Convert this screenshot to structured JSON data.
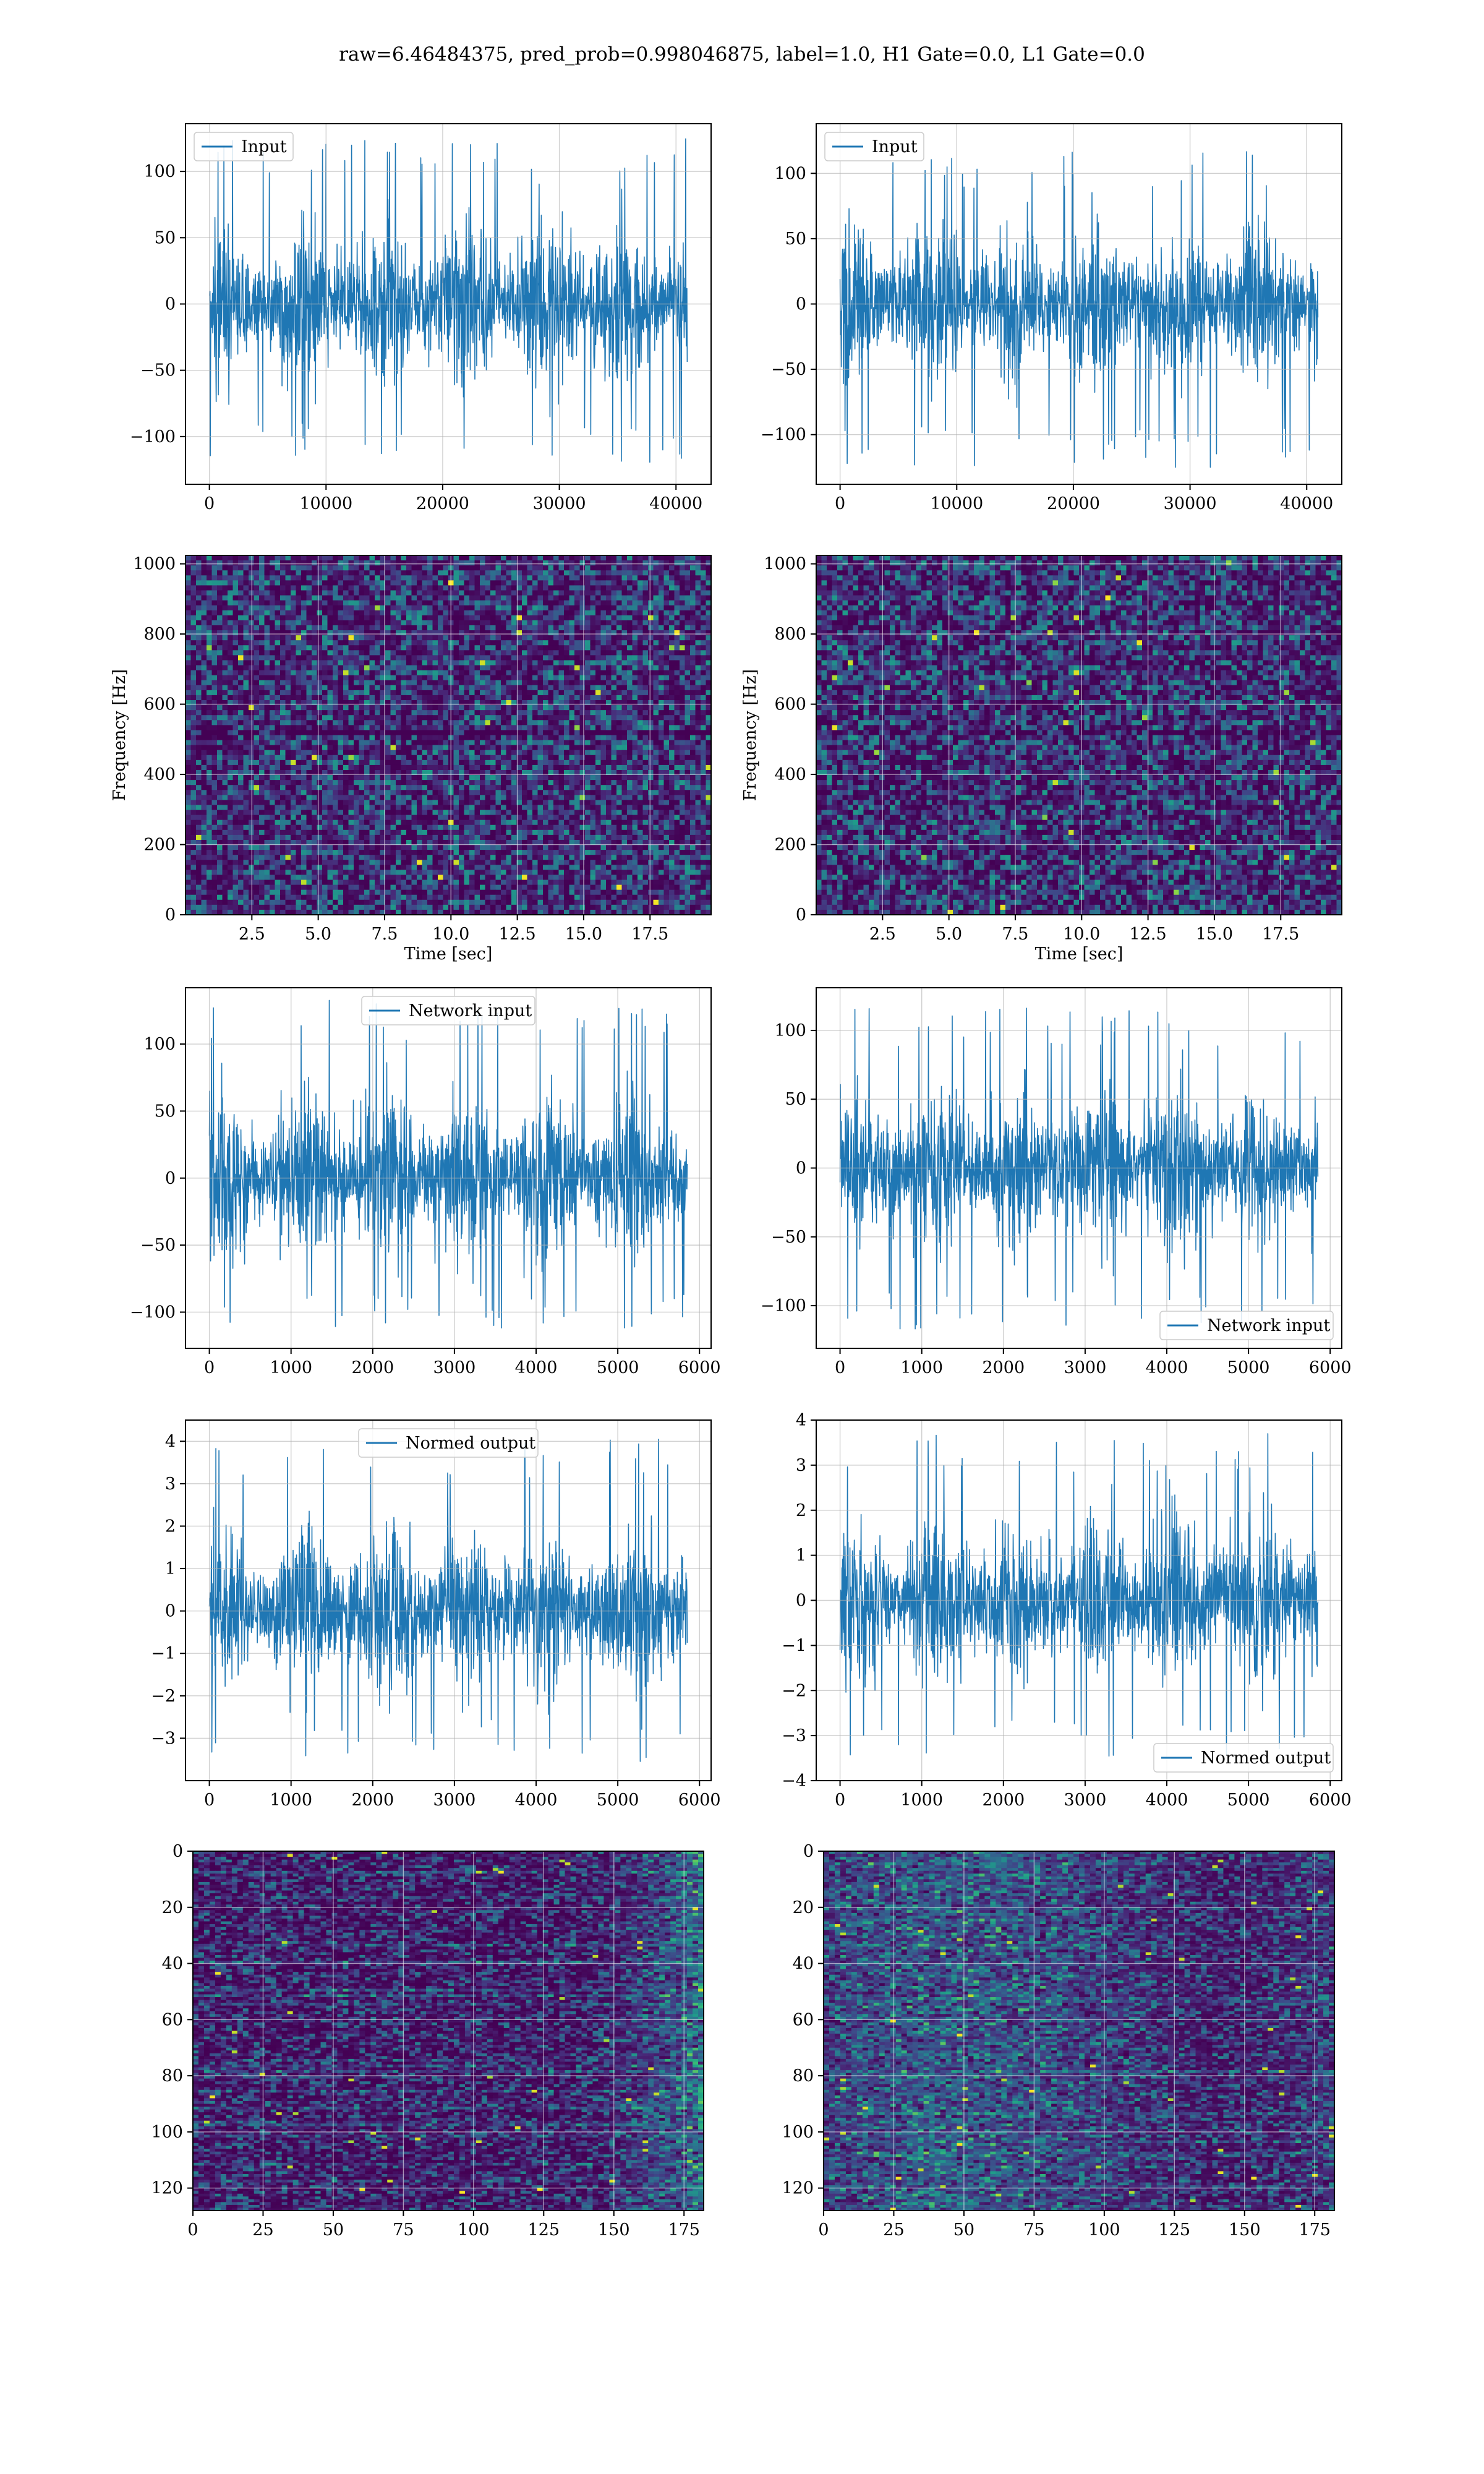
{
  "figure": {
    "suptitle": "raw=6.46484375, pred_prob=0.998046875, label=1.0, H1 Gate=0.0, L1 Gate=0.0",
    "colors": {
      "line": "#1f77b4",
      "grid": "#b0b0b0",
      "viridis_dark": "#440154"
    }
  },
  "chart_data": [
    {
      "id": "input-h1",
      "type": "line",
      "title": "",
      "series": [
        {
          "name": "Input",
          "length": 40960,
          "amplitude_range": [
            -120,
            125
          ]
        }
      ],
      "xlim": [
        -2048,
        43008
      ],
      "ylim": [
        -136,
        136
      ],
      "xticks": [
        0,
        10000,
        20000,
        30000,
        40000
      ],
      "xtick_labels": [
        "0",
        "10000",
        "20000",
        "30000",
        "40000"
      ],
      "yticks": [
        -100,
        -50,
        0,
        50,
        100
      ],
      "ytick_labels": [
        "−100",
        "−50",
        "0",
        "50",
        "100"
      ],
      "xlabel": "",
      "ylabel": "",
      "grid": true,
      "legend": "upper left"
    },
    {
      "id": "input-l1",
      "type": "line",
      "title": "",
      "series": [
        {
          "name": "Input",
          "length": 40960,
          "amplitude_range": [
            -125,
            118
          ]
        }
      ],
      "xlim": [
        -2048,
        43008
      ],
      "ylim": [
        -138,
        138
      ],
      "xticks": [
        0,
        10000,
        20000,
        30000,
        40000
      ],
      "xtick_labels": [
        "0",
        "10000",
        "20000",
        "30000",
        "40000"
      ],
      "yticks": [
        -100,
        -50,
        0,
        50,
        100
      ],
      "ytick_labels": [
        "−100",
        "−50",
        "0",
        "50",
        "100"
      ],
      "xlabel": "",
      "ylabel": "",
      "grid": true,
      "legend": "upper left"
    },
    {
      "id": "spectrogram-h1",
      "type": "heatmap",
      "title": "",
      "xlim": [
        0,
        19.8
      ],
      "ylim": [
        0,
        1024
      ],
      "xticks": [
        2.5,
        5.0,
        7.5,
        10.0,
        12.5,
        15.0,
        17.5
      ],
      "xtick_labels": [
        "2.5",
        "5.0",
        "7.5",
        "10.0",
        "12.5",
        "15.0",
        "17.5"
      ],
      "yticks": [
        0,
        200,
        400,
        600,
        800,
        1000
      ],
      "ytick_labels": [
        "0",
        "200",
        "400",
        "600",
        "800",
        "1000"
      ],
      "xlabel": "Time [sec]",
      "ylabel": "Frequency [Hz]",
      "grid": true,
      "colormap": "viridis"
    },
    {
      "id": "spectrogram-l1",
      "type": "heatmap",
      "title": "",
      "xlim": [
        0,
        19.8
      ],
      "ylim": [
        0,
        1024
      ],
      "xticks": [
        2.5,
        5.0,
        7.5,
        10.0,
        12.5,
        15.0,
        17.5
      ],
      "xtick_labels": [
        "2.5",
        "5.0",
        "7.5",
        "10.0",
        "12.5",
        "15.0",
        "17.5"
      ],
      "yticks": [
        0,
        200,
        400,
        600,
        800,
        1000
      ],
      "ytick_labels": [
        "0",
        "200",
        "400",
        "600",
        "800",
        "1000"
      ],
      "xlabel": "Time [sec]",
      "ylabel": "Frequency [Hz]",
      "grid": true,
      "colormap": "viridis"
    },
    {
      "id": "network-input-h1",
      "type": "line",
      "title": "",
      "series": [
        {
          "name": "Network input",
          "length": 5850,
          "amplitude_range": [
            -115,
            133
          ]
        }
      ],
      "xlim": [
        -292,
        6142
      ],
      "ylim": [
        -127,
        142
      ],
      "xticks": [
        0,
        1000,
        2000,
        3000,
        4000,
        5000,
        6000
      ],
      "xtick_labels": [
        "0",
        "1000",
        "2000",
        "3000",
        "4000",
        "5000",
        "6000"
      ],
      "yticks": [
        -100,
        -50,
        0,
        50,
        100
      ],
      "ytick_labels": [
        "−100",
        "−50",
        "0",
        "50",
        "100"
      ],
      "xlabel": "",
      "ylabel": "",
      "grid": true,
      "legend": "upper center"
    },
    {
      "id": "network-input-l1",
      "type": "line",
      "title": "",
      "series": [
        {
          "name": "Network input",
          "length": 5850,
          "amplitude_range": [
            -120,
            118
          ]
        }
      ],
      "xlim": [
        -292,
        6142
      ],
      "ylim": [
        -131,
        131
      ],
      "xticks": [
        0,
        1000,
        2000,
        3000,
        4000,
        5000,
        6000
      ],
      "xtick_labels": [
        "0",
        "1000",
        "2000",
        "3000",
        "4000",
        "5000",
        "6000"
      ],
      "yticks": [
        -100,
        -50,
        0,
        50,
        100
      ],
      "ytick_labels": [
        "−100",
        "−50",
        "0",
        "50",
        "100"
      ],
      "xlabel": "",
      "ylabel": "",
      "grid": true,
      "legend": "lower right"
    },
    {
      "id": "normed-output-h1",
      "type": "line",
      "title": "",
      "series": [
        {
          "name": "Normed output",
          "length": 5850,
          "amplitude_range": [
            -3.6,
            4.1
          ]
        }
      ],
      "xlim": [
        -292,
        6142
      ],
      "ylim": [
        -4.0,
        4.5
      ],
      "xticks": [
        0,
        1000,
        2000,
        3000,
        4000,
        5000,
        6000
      ],
      "xtick_labels": [
        "0",
        "1000",
        "2000",
        "3000",
        "4000",
        "5000",
        "6000"
      ],
      "yticks": [
        -3,
        -2,
        -1,
        0,
        1,
        2,
        3,
        4
      ],
      "ytick_labels": [
        "−3",
        "−2",
        "−1",
        "0",
        "1",
        "2",
        "3",
        "4"
      ],
      "xlabel": "",
      "ylabel": "",
      "grid": true,
      "legend": "upper center"
    },
    {
      "id": "normed-output-l1",
      "type": "line",
      "title": "",
      "series": [
        {
          "name": "Normed output",
          "length": 5850,
          "amplitude_range": [
            -3.5,
            3.7
          ]
        }
      ],
      "xlim": [
        -292,
        6142
      ],
      "ylim": [
        -4.0,
        4.0
      ],
      "xticks": [
        0,
        1000,
        2000,
        3000,
        4000,
        5000,
        6000
      ],
      "xtick_labels": [
        "0",
        "1000",
        "2000",
        "3000",
        "4000",
        "5000",
        "6000"
      ],
      "yticks": [
        -4,
        -3,
        -2,
        -1,
        0,
        1,
        2,
        3,
        4
      ],
      "ytick_labels": [
        "−4",
        "−3",
        "−2",
        "−1",
        "0",
        "1",
        "2",
        "3",
        "4"
      ],
      "xlabel": "",
      "ylabel": "",
      "grid": true,
      "legend": "lower right"
    },
    {
      "id": "feature-map-h1",
      "type": "heatmap",
      "title": "",
      "xlim": [
        0,
        182
      ],
      "ylim": [
        128,
        0
      ],
      "xticks": [
        0,
        25,
        50,
        75,
        100,
        125,
        150,
        175
      ],
      "xtick_labels": [
        "0",
        "25",
        "50",
        "75",
        "100",
        "125",
        "150",
        "175"
      ],
      "yticks": [
        0,
        20,
        40,
        60,
        80,
        100,
        120
      ],
      "ytick_labels": [
        "0",
        "20",
        "40",
        "60",
        "80",
        "100",
        "120"
      ],
      "xlabel": "",
      "ylabel": "",
      "grid": true,
      "colormap": "viridis"
    },
    {
      "id": "feature-map-l1",
      "type": "heatmap",
      "title": "",
      "xlim": [
        0,
        182
      ],
      "ylim": [
        128,
        0
      ],
      "xticks": [
        0,
        25,
        50,
        75,
        100,
        125,
        150,
        175
      ],
      "xtick_labels": [
        "0",
        "25",
        "50",
        "75",
        "100",
        "125",
        "150",
        "175"
      ],
      "yticks": [
        0,
        20,
        40,
        60,
        80,
        100,
        120
      ],
      "ytick_labels": [
        "0",
        "20",
        "40",
        "60",
        "80",
        "100",
        "120"
      ],
      "xlabel": "",
      "ylabel": "",
      "grid": true,
      "colormap": "viridis"
    }
  ]
}
